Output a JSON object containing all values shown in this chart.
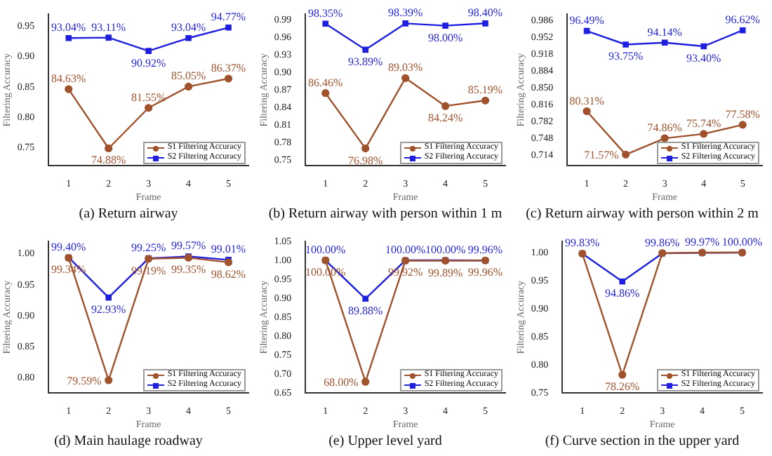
{
  "chart_data": [
    {
      "type": "line",
      "title": "(a) Return airway",
      "xlabel": "Frame",
      "ylabel": "Filtering Accuracy",
      "categories": [
        "1",
        "2",
        "3",
        "4",
        "5"
      ],
      "ylim": [
        0.72,
        0.97
      ],
      "yticks": [
        0.75,
        {
          "value": 0.8,
          "label": "0.80"
        },
        0.85,
        {
          "value": 0.9,
          "label": "0.90"
        },
        0.95
      ],
      "legend": "bottom right",
      "series": [
        {
          "name": "S1 Filtering Accuracy",
          "color": "#a0522d",
          "marker": "circle",
          "values": [
            0.8463,
            0.7488,
            0.8155,
            0.8505,
            0.8637
          ],
          "value_labels": [
            "84.63%",
            "74.88%",
            "81.55%",
            "85.05%",
            "86.37%"
          ]
        },
        {
          "name": "S2 Filtering Accuracy",
          "color": "#1f1fe0",
          "marker": "square",
          "values": [
            0.9304,
            0.9311,
            0.9092,
            0.9304,
            0.9477
          ],
          "value_labels": [
            "93.04%",
            "93.11%",
            "90.92%",
            "93.04%",
            "94.77%"
          ]
        }
      ]
    },
    {
      "type": "line",
      "title": "(b) Return airway with person within 1 m",
      "xlabel": "Frame",
      "ylabel": "Filtering Accuracy",
      "categories": [
        "1",
        "2",
        "3",
        "4",
        "5"
      ],
      "ylim": [
        0.74,
        1.0
      ],
      "yticks": [
        0.75,
        0.78,
        0.81,
        0.84,
        0.87,
        {
          "value": 0.9,
          "label": "0.90"
        },
        0.93,
        0.96,
        0.99
      ],
      "legend": "bottom right",
      "series": [
        {
          "name": "S1 Filtering Accuracy",
          "color": "#a0522d",
          "marker": "circle",
          "values": [
            0.8646,
            0.7698,
            0.8903,
            0.8424,
            0.8519
          ],
          "value_labels": [
            "86.46%",
            "76.98%",
            "89.03%",
            "84.24%",
            "85.19%"
          ]
        },
        {
          "name": "S2 Filtering Accuracy",
          "color": "#1f1fe0",
          "marker": "square",
          "values": [
            0.9835,
            0.9389,
            0.9839,
            0.98,
            0.984
          ],
          "value_labels": [
            "98.35%",
            "93.89%",
            "98.39%",
            "98.00%",
            "98.40%"
          ]
        }
      ]
    },
    {
      "type": "line",
      "title": "(c) Return airway with person within 2 m",
      "xlabel": "Frame",
      "ylabel": "Filtering Accuracy",
      "categories": [
        "1",
        "2",
        "3",
        "4",
        "5"
      ],
      "ylim": [
        0.693,
        0.999
      ],
      "yticks": [
        0.714,
        0.748,
        0.782,
        0.816,
        {
          "value": 0.85,
          "label": "0.850"
        },
        0.884,
        0.918,
        0.952,
        0.986
      ],
      "legend": "bottom right",
      "series": [
        {
          "name": "S1 Filtering Accuracy",
          "color": "#a0522d",
          "marker": "circle",
          "values": [
            0.8031,
            0.7157,
            0.7486,
            0.7574,
            0.7758
          ],
          "value_labels": [
            "80.31%",
            "71.57%",
            "74.86%",
            "75.74%",
            "77.58%"
          ]
        },
        {
          "name": "S2 Filtering Accuracy",
          "color": "#1f1fe0",
          "marker": "square",
          "values": [
            0.9649,
            0.9375,
            0.9414,
            0.934,
            0.9662
          ],
          "value_labels": [
            "96.49%",
            "93.75%",
            "94.14%",
            "93.40%",
            "96.62%"
          ]
        }
      ]
    },
    {
      "type": "line",
      "title": "(d) Main haulage roadway",
      "xlabel": "Frame",
      "ylabel": "Filtering Accuracy",
      "categories": [
        "1",
        "2",
        "3",
        "4",
        "5"
      ],
      "ylim": [
        0.775,
        1.02
      ],
      "yticks": [
        {
          "value": 0.8,
          "label": "0.80"
        },
        0.85,
        {
          "value": 0.9,
          "label": "0.90"
        },
        0.95,
        {
          "value": 1,
          "label": "1.00"
        }
      ],
      "legend": "bottom right",
      "series": [
        {
          "name": "S1 Filtering Accuracy",
          "color": "#a0522d",
          "marker": "circle",
          "values": [
            0.9934,
            0.7959,
            0.9919,
            0.9935,
            0.9862
          ],
          "value_labels": [
            "99.34%",
            "79.59%",
            "99.19%",
            "99.35%",
            "98.62%"
          ]
        },
        {
          "name": "S2 Filtering Accuracy",
          "color": "#1f1fe0",
          "marker": "square",
          "values": [
            0.994,
            0.9293,
            0.9925,
            0.9957,
            0.9901
          ],
          "value_labels": [
            "99.40%",
            "92.93%",
            "99.25%",
            "99.57%",
            "99.01%"
          ]
        }
      ]
    },
    {
      "type": "line",
      "title": "(e) Upper level yard",
      "xlabel": "Frame",
      "ylabel": "Filtering Accuracy",
      "categories": [
        "1",
        "2",
        "3",
        "4",
        "5"
      ],
      "ylim": [
        0.65,
        1.05
      ],
      "yticks": [
        0.65,
        {
          "value": 0.7,
          "label": "0.70"
        },
        0.75,
        {
          "value": 0.8,
          "label": "0.80"
        },
        0.85,
        {
          "value": 0.9,
          "label": "0.90"
        },
        0.95,
        {
          "value": 1,
          "label": "1.00"
        },
        1.05
      ],
      "legend": "bottom right",
      "series": [
        {
          "name": "S1 Filtering Accuracy",
          "color": "#a0522d",
          "marker": "circle",
          "values": [
            1.0,
            0.68,
            0.9992,
            0.9989,
            0.9996
          ],
          "value_labels": [
            "100.00%",
            "68.00%",
            "99.92%",
            "99.89%",
            "99.96%"
          ]
        },
        {
          "name": "S2 Filtering Accuracy",
          "color": "#1f1fe0",
          "marker": "square",
          "values": [
            1.0,
            0.8988,
            1.0,
            1.0,
            0.9996
          ],
          "value_labels": [
            "100.00%",
            "89.88%",
            "100.00%",
            "100.00%",
            "99.96%"
          ]
        }
      ]
    },
    {
      "type": "line",
      "title": "(f) Curve section in the upper yard",
      "xlabel": "Frame",
      "ylabel": "Filtering Accuracy",
      "categories": [
        "1",
        "2",
        "3",
        "4",
        "5"
      ],
      "ylim": [
        0.75,
        1.02
      ],
      "yticks": [
        0.75,
        {
          "value": 0.8,
          "label": "0.80"
        },
        0.85,
        {
          "value": 0.9,
          "label": "0.90"
        },
        0.95,
        {
          "value": 1,
          "label": "1.00"
        }
      ],
      "legend": "bottom right",
      "series": [
        {
          "name": "S1 Filtering Accuracy",
          "color": "#a0522d",
          "marker": "circle",
          "values": [
            0.998,
            0.7826,
            0.999,
            1.0,
            1.0
          ],
          "value_labels": [
            null,
            "78.26%",
            null,
            null,
            null
          ]
        },
        {
          "name": "S2 Filtering Accuracy",
          "color": "#1f1fe0",
          "marker": "square",
          "values": [
            0.9983,
            0.9486,
            0.9986,
            0.9997,
            1.0
          ],
          "value_labels": [
            "99.83%",
            "94.86%",
            "99.86%",
            "99.97%",
            "100.00%"
          ]
        }
      ]
    }
  ]
}
